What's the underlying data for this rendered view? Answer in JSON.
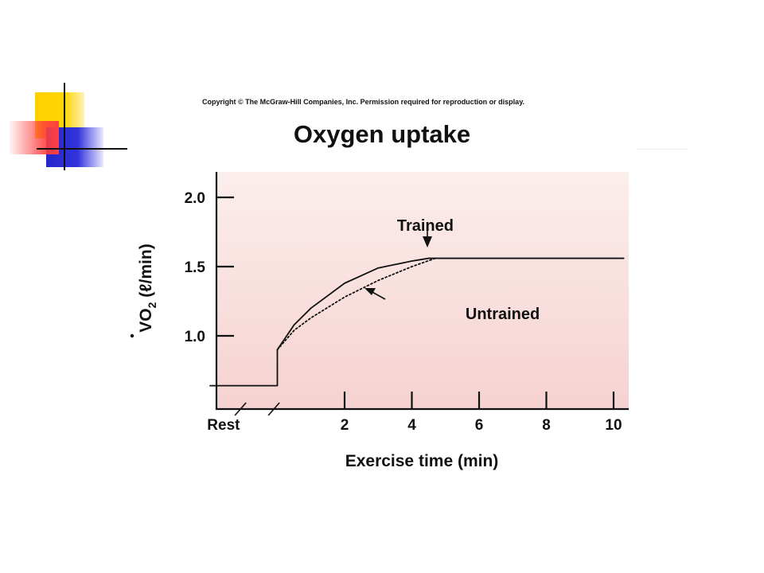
{
  "copyright": "Copyright © The McGraw-Hill Companies, Inc. Permission required for reproduction or display.",
  "colors": {
    "plot_background_top": "#fbeeec",
    "plot_background_bottom": "#f6d2d0",
    "logo_yellow": "#ffd000",
    "logo_red": "#ff4040",
    "logo_blue": "#2626cc"
  },
  "chart_data": {
    "type": "line",
    "title": "Oxygen uptake",
    "xlabel": "Exercise time (min)",
    "ylabel_parts": {
      "main": "VO",
      "sub": "2",
      "unit": " (ℓ/min)"
    },
    "xlim": [
      -2,
      10
    ],
    "ylim": [
      0.45,
      2.2
    ],
    "x_ticks": [
      {
        "label": "Rest",
        "x": -1.6
      },
      {
        "label": "2",
        "x": 2
      },
      {
        "label": "4",
        "x": 4
      },
      {
        "label": "6",
        "x": 6
      },
      {
        "label": "8",
        "x": 8
      },
      {
        "label": "10",
        "x": 10
      }
    ],
    "y_ticks": [
      {
        "label": "2.0",
        "y": 2.0
      },
      {
        "label": "1.5",
        "y": 1.5
      },
      {
        "label": "1.0",
        "y": 1.0
      }
    ],
    "axis_break_x": -0.6,
    "series": [
      {
        "name": "Trained",
        "style": "solid",
        "x": [
          -2,
          0,
          0,
          0.5,
          1,
          2,
          3,
          4,
          4.5,
          5,
          6,
          8,
          10.3
        ],
        "y": [
          0.64,
          0.64,
          0.9,
          1.08,
          1.2,
          1.38,
          1.49,
          1.54,
          1.56,
          1.56,
          1.56,
          1.56,
          1.56
        ]
      },
      {
        "name": "Untrained",
        "style": "dotted",
        "x": [
          0,
          0.5,
          1,
          2,
          3,
          4,
          4.7
        ],
        "y": [
          0.9,
          1.04,
          1.13,
          1.28,
          1.4,
          1.5,
          1.56
        ]
      }
    ],
    "annotations": [
      {
        "text": "Trained",
        "x": 4.4,
        "y": 1.76
      },
      {
        "text": "Untrained",
        "x": 6.7,
        "y": 1.12
      }
    ],
    "grid": false
  }
}
